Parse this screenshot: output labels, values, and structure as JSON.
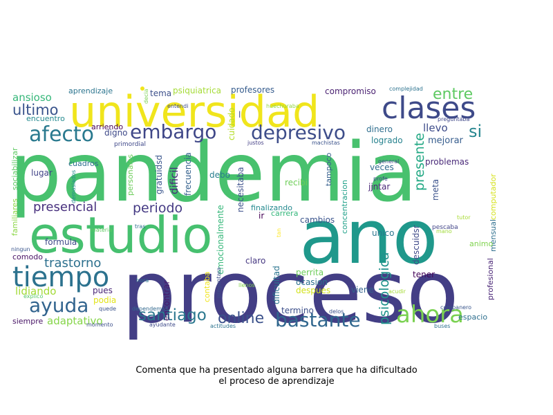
{
  "caption": {
    "line1": "Comenta que ha presentado alguna barrera que ha dificultado",
    "line2": "el proceso de aprendizaje"
  },
  "words": [
    {
      "text": "pandemia",
      "color": "#48c16e"
    },
    {
      "text": "proceso",
      "color": "#433e85"
    },
    {
      "text": "ano",
      "color": "#1f988b"
    },
    {
      "text": "universidad",
      "color": "#f0e51c"
    },
    {
      "text": "estudio",
      "color": "#46c06f"
    },
    {
      "text": "clases",
      "color": "#3e4a89"
    },
    {
      "text": "tiempo",
      "color": "#2c728e"
    },
    {
      "text": "bastante",
      "color": "#31678e"
    },
    {
      "text": "depresivo",
      "color": "#3d4d8a"
    },
    {
      "text": "afecto",
      "color": "#29798e"
    },
    {
      "text": "embargo",
      "color": "#3f4788"
    },
    {
      "text": "ahora",
      "color": "#7ad151"
    },
    {
      "text": "ayuda",
      "color": "#32648e"
    },
    {
      "text": "santiago",
      "color": "#2a778e"
    },
    {
      "text": "online",
      "color": "#3b518b"
    },
    {
      "text": "presencial",
      "color": "#472f7d"
    },
    {
      "text": "periodo",
      "color": "#443983"
    },
    {
      "text": "trastorno",
      "color": "#2d708e"
    },
    {
      "text": "ultimo",
      "color": "#3a548c"
    },
    {
      "text": "entre",
      "color": "#5ec962"
    },
    {
      "text": "si",
      "color": "#25858e"
    },
    {
      "text": "psicologica",
      "color": "#20928c"
    },
    {
      "text": "presente",
      "color": "#22a884"
    },
    {
      "text": "adaptativo",
      "color": "#86d549"
    },
    {
      "text": "lidiando",
      "color": "#a2da37"
    },
    {
      "text": "ansioso",
      "color": "#35b779"
    },
    {
      "text": "llevo",
      "color": "#3e4c8a"
    },
    {
      "text": "mejorar",
      "color": "#365d8d"
    },
    {
      "text": "problemas",
      "color": "#482878"
    },
    {
      "text": "compromiso",
      "color": "#481f70"
    },
    {
      "text": "profesores",
      "color": "#365c8d"
    },
    {
      "text": "psiquiatrica",
      "color": "#a5db36"
    },
    {
      "text": "tema",
      "color": "#3c4f8a"
    },
    {
      "text": "aprendizaje",
      "color": "#2b748e"
    },
    {
      "text": "encuentro",
      "color": "#23898e"
    },
    {
      "text": "arriendo",
      "color": "#440154"
    },
    {
      "text": "primordial",
      "color": "#3f4889"
    },
    {
      "text": "cuadros",
      "color": "#2e6f8e"
    },
    {
      "text": "lugar",
      "color": "#414487"
    },
    {
      "text": "gratuidsd",
      "color": "#39558c"
    },
    {
      "text": "dificil",
      "color": "#472c7a"
    },
    {
      "text": "personales",
      "color": "#6ccd5a"
    },
    {
      "text": "frecuencia",
      "color": "#34618d"
    },
    {
      "text": "debo",
      "color": "#287d8e"
    },
    {
      "text": "cuidado",
      "color": "#b5de2b"
    },
    {
      "text": "necesitaba",
      "color": "#3c508b"
    },
    {
      "text": "recibi",
      "color": "#6ece58"
    },
    {
      "text": "tampoco",
      "color": "#355e8d"
    },
    {
      "text": "concentracion",
      "color": "#1fa088"
    },
    {
      "text": "veces",
      "color": "#306a8e"
    },
    {
      "text": "jjntar",
      "color": "#482677"
    },
    {
      "text": "dinero",
      "color": "#2e6e8e"
    },
    {
      "text": "logrado",
      "color": "#26828e"
    },
    {
      "text": "general",
      "color": "#3f4889"
    },
    {
      "text": "profe",
      "color": "#404588"
    },
    {
      "text": "meta",
      "color": "#3b528b"
    },
    {
      "text": "computador",
      "color": "#d5e21a"
    },
    {
      "text": "mensual",
      "color": "#2e6f8e"
    },
    {
      "text": "profesional",
      "color": "#482475"
    },
    {
      "text": "tutor",
      "color": "#a8db34"
    },
    {
      "text": "pescaba",
      "color": "#414487"
    },
    {
      "text": "mano",
      "color": "#a0da39"
    },
    {
      "text": "animo",
      "color": "#7fd34e"
    },
    {
      "text": "descuidsr",
      "color": "#3e4989"
    },
    {
      "text": "unico",
      "color": "#2a768e"
    },
    {
      "text": "finalizando",
      "color": "#23898e"
    },
    {
      "text": "carrera",
      "color": "#32b67a"
    },
    {
      "text": "cambios",
      "color": "#3a548c"
    },
    {
      "text": "ir",
      "color": "#440154"
    },
    {
      "text": "claro",
      "color": "#453781"
    },
    {
      "text": "perrita",
      "color": "#6ccd5a"
    },
    {
      "text": "ocasion",
      "color": "#2c718e"
    },
    {
      "text": "despues",
      "color": "#d2e21b"
    },
    {
      "text": "termino",
      "color": "#3c4f8a"
    },
    {
      "text": "delos",
      "color": "#3b528b"
    },
    {
      "text": "viene",
      "color": "#33638d"
    },
    {
      "text": "tener",
      "color": "#450559"
    },
    {
      "text": "acudir",
      "color": "#a5db36"
    },
    {
      "text": "companero",
      "color": "#39568c"
    },
    {
      "text": "buses",
      "color": "#2d708e"
    },
    {
      "text": "espacio",
      "color": "#2e6f8e"
    },
    {
      "text": "emocionalmente",
      "color": "#35b779"
    },
    {
      "text": "contaba",
      "color": "#f1e51d"
    },
    {
      "text": "dificultad",
      "color": "#2b748e"
    },
    {
      "text": "llenos",
      "color": "#84d44b"
    },
    {
      "text": "tan",
      "color": "#fde725"
    },
    {
      "text": "encontrar",
      "color": "#48186a"
    },
    {
      "text": "hora",
      "color": "#2c728e"
    },
    {
      "text": "preguntara",
      "color": "#3c4f8a"
    },
    {
      "text": "pues",
      "color": "#482576"
    },
    {
      "text": "podia",
      "color": "#e2e418"
    },
    {
      "text": "quede",
      "color": "#3b528b"
    },
    {
      "text": "explico",
      "color": "#56c667"
    },
    {
      "text": "siempre",
      "color": "#471365"
    },
    {
      "text": "momento",
      "color": "#3c4f8a"
    },
    {
      "text": "ayudante",
      "color": "#3e4a89"
    },
    {
      "text": "actitudes",
      "color": "#2c728e"
    },
    {
      "text": "dependemos",
      "color": "#31688e"
    },
    {
      "text": "comodo",
      "color": "#471063"
    },
    {
      "text": "formula",
      "color": "#3e4989"
    },
    {
      "text": "ningun",
      "color": "#39558c"
    },
    {
      "text": "materia",
      "color": "#5ec962"
    },
    {
      "text": "tras",
      "color": "#2d708e"
    },
    {
      "text": "familiares",
      "color": "#8bd646"
    },
    {
      "text": "sociabilizar",
      "color": "#5ec962"
    },
    {
      "text": "demasiados",
      "color": "#23898e"
    },
    {
      "text": "decia",
      "color": "#7ad151"
    },
    {
      "text": "entendi",
      "color": "#3e4a89"
    },
    {
      "text": "huechuraba",
      "color": "#94d741"
    },
    {
      "text": "justos",
      "color": "#433e85"
    },
    {
      "text": "machistas",
      "color": "#3b528b"
    },
    {
      "text": "complejidad",
      "color": "#2c728e"
    },
    {
      "text": "preguntaba",
      "color": "#3f4788"
    },
    {
      "text": "digno",
      "color": "#3e4989"
    },
    {
      "text": "l",
      "color": "#3e4989"
    }
  ]
}
